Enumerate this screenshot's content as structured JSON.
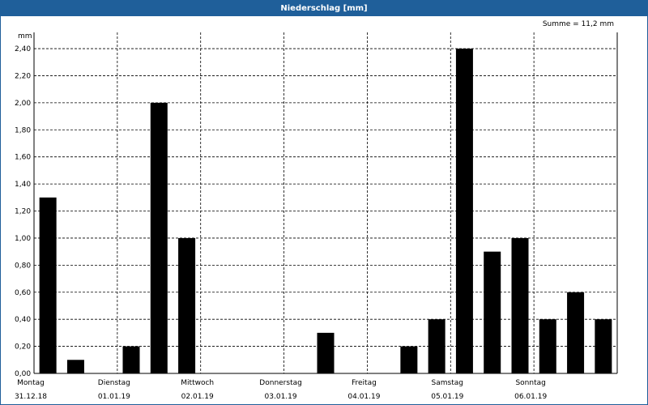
{
  "chart_data": {
    "type": "bar",
    "title": "Niederschlag [mm]",
    "summary": "Summe = 11,2 mm",
    "ylabel": "mm",
    "ylim": [
      0,
      2.52
    ],
    "yticks": [
      "0,00",
      "0,20",
      "0,40",
      "0,60",
      "0,80",
      "1,00",
      "1,20",
      "1,40",
      "1,60",
      "1,80",
      "2,00",
      "2,20",
      "2,40"
    ],
    "days": [
      {
        "name": "Montag",
        "date": "31.12.18"
      },
      {
        "name": "Dienstag",
        "date": "01.01.19"
      },
      {
        "name": "Mittwoch",
        "date": "02.01.19"
      },
      {
        "name": "Donnerstag",
        "date": "03.01.19"
      },
      {
        "name": "Freitag",
        "date": "04.01.19"
      },
      {
        "name": "Samstag",
        "date": "05.01.19"
      },
      {
        "name": "Sonntag",
        "date": "06.01.19"
      }
    ],
    "bars_per_day": 3,
    "values": [
      1.3,
      0.1,
      0.0,
      0.2,
      2.0,
      1.0,
      0.0,
      0.0,
      0.0,
      0.0,
      0.3,
      0.0,
      0.0,
      0.2,
      0.4,
      2.4,
      0.9,
      1.0,
      0.4,
      0.6,
      0.4
    ],
    "grid": true,
    "bar_color": "#000000"
  }
}
